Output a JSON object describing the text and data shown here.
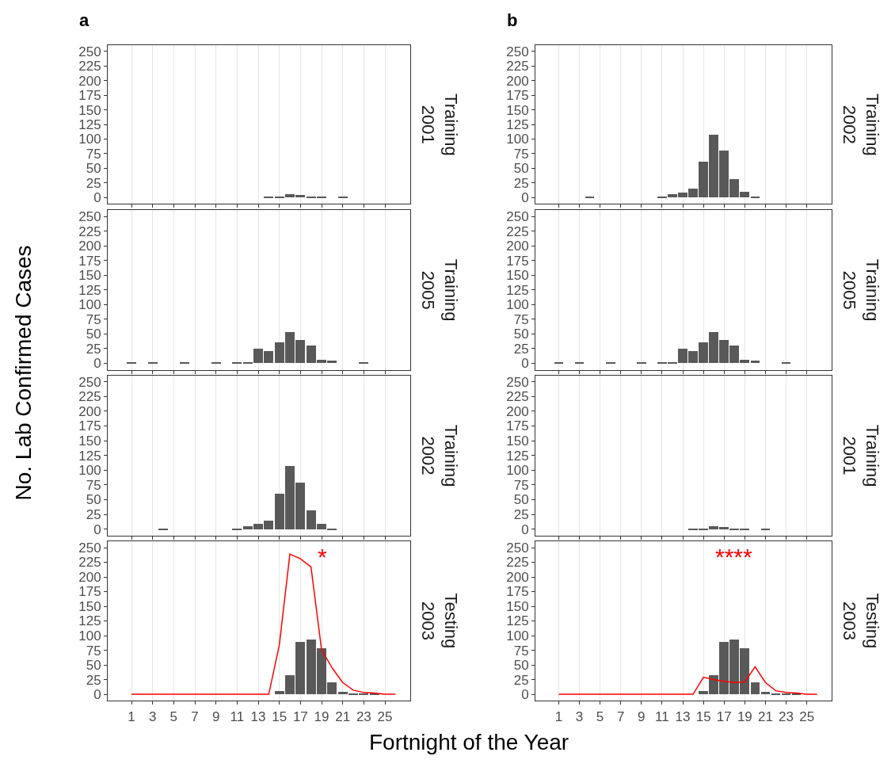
{
  "chart_data": [
    {
      "type": "bar",
      "title": "a",
      "subtitle": "Training\n2001",
      "ylabel": "No. Lab Confirmed Cases",
      "x": [
        1,
        2,
        3,
        4,
        5,
        6,
        7,
        8,
        9,
        10,
        11,
        12,
        13,
        14,
        15,
        16,
        17,
        18,
        19,
        20,
        21,
        22,
        23,
        24,
        25,
        26
      ],
      "series": [
        {
          "color": "#595959",
          "values": [
            0,
            0,
            0,
            0,
            0,
            0,
            0,
            0,
            0,
            0,
            0,
            0,
            0,
            1,
            2,
            6,
            4,
            2,
            2,
            0,
            2,
            0,
            0,
            0,
            0,
            0
          ]
        }
      ],
      "xlim": [
        -1.25,
        27.4
      ],
      "ylim": [
        -11,
        261
      ],
      "xticks": [
        1,
        3,
        5,
        7,
        9,
        11,
        13,
        15,
        17,
        19,
        21,
        23,
        25
      ],
      "yticks": [
        0,
        25,
        50,
        75,
        100,
        125,
        150,
        175,
        200,
        225,
        250
      ],
      "grid": "x",
      "tick_labels": "y"
    },
    {
      "type": "bar",
      "title": "b",
      "subtitle": "Training\n2002",
      "x": [
        1,
        2,
        3,
        4,
        5,
        6,
        7,
        8,
        9,
        10,
        11,
        12,
        13,
        14,
        15,
        16,
        17,
        18,
        19,
        20,
        21,
        22,
        23,
        24,
        25,
        26
      ],
      "series": [
        {
          "color": "#595959",
          "values": [
            0,
            0,
            0,
            1,
            0,
            0,
            0,
            0,
            0,
            0,
            1,
            6,
            9,
            15,
            61,
            108,
            80,
            32,
            10,
            2,
            0,
            0,
            0,
            0,
            0,
            0
          ]
        }
      ],
      "xlim": [
        -1.25,
        27.4
      ],
      "ylim": [
        -11,
        261
      ],
      "xticks": [
        1,
        3,
        5,
        7,
        9,
        11,
        13,
        15,
        17,
        19,
        21,
        23,
        25
      ],
      "yticks": [
        0,
        25,
        50,
        75,
        100,
        125,
        150,
        175,
        200,
        225,
        250
      ],
      "grid": "x",
      "tick_labels": "y"
    },
    {
      "type": "bar",
      "subtitle": "Training\n2005",
      "x": [
        1,
        2,
        3,
        4,
        5,
        6,
        7,
        8,
        9,
        10,
        11,
        12,
        13,
        14,
        15,
        16,
        17,
        18,
        19,
        20,
        21,
        22,
        23,
        24,
        25,
        26
      ],
      "series": [
        {
          "color": "#595959",
          "values": [
            2,
            0,
            1,
            0,
            0,
            1,
            0,
            0,
            1,
            0,
            1,
            2,
            25,
            20,
            35,
            53,
            40,
            30,
            6,
            4,
            0,
            0,
            1,
            0,
            0,
            0
          ]
        }
      ],
      "xlim": [
        -1.25,
        27.4
      ],
      "ylim": [
        -11,
        261
      ],
      "xticks": [
        1,
        3,
        5,
        7,
        9,
        11,
        13,
        15,
        17,
        19,
        21,
        23,
        25
      ],
      "yticks": [
        0,
        25,
        50,
        75,
        100,
        125,
        150,
        175,
        200,
        225,
        250
      ],
      "grid": "x",
      "tick_labels": "y"
    },
    {
      "type": "bar",
      "subtitle": "Training\n2005",
      "x": [
        1,
        2,
        3,
        4,
        5,
        6,
        7,
        8,
        9,
        10,
        11,
        12,
        13,
        14,
        15,
        16,
        17,
        18,
        19,
        20,
        21,
        22,
        23,
        24,
        25,
        26
      ],
      "series": [
        {
          "color": "#595959",
          "values": [
            2,
            0,
            1,
            0,
            0,
            1,
            0,
            0,
            1,
            0,
            1,
            2,
            25,
            20,
            35,
            53,
            40,
            30,
            6,
            4,
            0,
            0,
            1,
            0,
            0,
            0
          ]
        }
      ],
      "xlim": [
        -1.25,
        27.4
      ],
      "ylim": [
        -11,
        261
      ],
      "xticks": [
        1,
        3,
        5,
        7,
        9,
        11,
        13,
        15,
        17,
        19,
        21,
        23,
        25
      ],
      "yticks": [
        0,
        25,
        50,
        75,
        100,
        125,
        150,
        175,
        200,
        225,
        250
      ],
      "grid": "x",
      "tick_labels": "y"
    },
    {
      "type": "bar",
      "subtitle": "Training\n2002",
      "x": [
        1,
        2,
        3,
        4,
        5,
        6,
        7,
        8,
        9,
        10,
        11,
        12,
        13,
        14,
        15,
        16,
        17,
        18,
        19,
        20,
        21,
        22,
        23,
        24,
        25,
        26
      ],
      "series": [
        {
          "color": "#595959",
          "values": [
            0,
            0,
            0,
            1,
            0,
            0,
            0,
            0,
            0,
            0,
            1,
            6,
            9,
            15,
            61,
            108,
            80,
            32,
            10,
            2,
            0,
            0,
            0,
            0,
            0,
            0
          ]
        }
      ],
      "xlim": [
        -1.25,
        27.4
      ],
      "ylim": [
        -11,
        261
      ],
      "xticks": [
        1,
        3,
        5,
        7,
        9,
        11,
        13,
        15,
        17,
        19,
        21,
        23,
        25
      ],
      "yticks": [
        0,
        25,
        50,
        75,
        100,
        125,
        150,
        175,
        200,
        225,
        250
      ],
      "grid": "x",
      "tick_labels": "y"
    },
    {
      "type": "bar",
      "subtitle": "Training\n2001",
      "x": [
        1,
        2,
        3,
        4,
        5,
        6,
        7,
        8,
        9,
        10,
        11,
        12,
        13,
        14,
        15,
        16,
        17,
        18,
        19,
        20,
        21,
        22,
        23,
        24,
        25,
        26
      ],
      "series": [
        {
          "color": "#595959",
          "values": [
            0,
            0,
            0,
            0,
            0,
            0,
            0,
            0,
            0,
            0,
            0,
            0,
            0,
            1,
            2,
            6,
            4,
            2,
            2,
            0,
            2,
            0,
            0,
            0,
            0,
            0
          ]
        }
      ],
      "xlim": [
        -1.25,
        27.4
      ],
      "ylim": [
        -11,
        261
      ],
      "xticks": [
        1,
        3,
        5,
        7,
        9,
        11,
        13,
        15,
        17,
        19,
        21,
        23,
        25
      ],
      "yticks": [
        0,
        25,
        50,
        75,
        100,
        125,
        150,
        175,
        200,
        225,
        250
      ],
      "grid": "x",
      "tick_labels": "y"
    },
    {
      "type": "bar",
      "subtitle": "Testing\n2003",
      "xlabel": "Fortnight of the Year",
      "x": [
        1,
        2,
        3,
        4,
        5,
        6,
        7,
        8,
        9,
        10,
        11,
        12,
        13,
        14,
        15,
        16,
        17,
        18,
        19,
        20,
        21,
        22,
        23,
        24,
        25,
        26
      ],
      "series": [
        {
          "color": "#595959",
          "values": [
            0,
            0,
            0,
            0,
            0,
            0,
            0,
            0,
            0,
            0,
            0,
            0,
            0,
            null,
            6,
            33,
            90,
            94,
            78,
            21,
            5,
            2,
            1,
            1,
            0,
            0
          ]
        },
        {
          "type": "line",
          "color": "#ff0000",
          "values": [
            0,
            0,
            0,
            0,
            0,
            0,
            0,
            0,
            0,
            0,
            0,
            0,
            0,
            0,
            84,
            239,
            231,
            217,
            76,
            45,
            20,
            7,
            3,
            2,
            0,
            0
          ]
        }
      ],
      "annotations": [
        "*"
      ],
      "xlim": [
        -1.25,
        27.4
      ],
      "ylim": [
        -11,
        261
      ],
      "xticks": [
        1,
        3,
        5,
        7,
        9,
        11,
        13,
        15,
        17,
        19,
        21,
        23,
        25
      ],
      "yticks": [
        0,
        25,
        50,
        75,
        100,
        125,
        150,
        175,
        200,
        225,
        250
      ],
      "grid": "x",
      "marker": "none",
      "line_style": "solid"
    },
    {
      "type": "bar",
      "subtitle": "Testing\n2003",
      "x": [
        1,
        2,
        3,
        4,
        5,
        6,
        7,
        8,
        9,
        10,
        11,
        12,
        13,
        14,
        15,
        16,
        17,
        18,
        19,
        20,
        21,
        22,
        23,
        24,
        25,
        26
      ],
      "series": [
        {
          "color": "#595959",
          "values": [
            0,
            0,
            0,
            0,
            0,
            0,
            0,
            0,
            0,
            0,
            0,
            0,
            0,
            null,
            6,
            33,
            90,
            94,
            78,
            21,
            5,
            2,
            1,
            1,
            0,
            0
          ]
        },
        {
          "type": "line",
          "color": "#ff0000",
          "values": [
            0,
            0,
            0,
            0,
            0,
            0,
            0,
            0,
            0,
            0,
            0,
            0,
            0,
            0,
            29,
            25,
            22,
            20,
            21,
            47,
            20,
            6,
            3,
            2,
            0,
            0
          ]
        }
      ],
      "annotations": [
        "****"
      ],
      "xlim": [
        -1.25,
        27.4
      ],
      "ylim": [
        -11,
        261
      ],
      "xticks": [
        1,
        3,
        5,
        7,
        9,
        11,
        13,
        15,
        17,
        19,
        21,
        23,
        25
      ],
      "yticks": [
        0,
        25,
        50,
        75,
        100,
        125,
        150,
        175,
        200,
        225,
        250
      ],
      "grid": "x",
      "marker": "none",
      "line_style": "solid"
    }
  ]
}
